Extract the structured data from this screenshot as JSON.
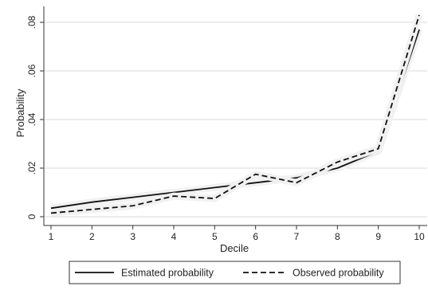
{
  "chart_data": {
    "type": "line",
    "title": "",
    "xlabel": "Decile",
    "ylabel": "Probability",
    "x": [
      1,
      2,
      3,
      4,
      5,
      6,
      7,
      8,
      9,
      10
    ],
    "x_tick_labels": [
      "1",
      "2",
      "3",
      "4",
      "5",
      "6",
      "7",
      "8",
      "9",
      "10"
    ],
    "y_ticks": [
      0,
      0.02,
      0.04,
      0.06,
      0.08
    ],
    "y_tick_labels": [
      "0",
      ".02",
      ".04",
      ".06",
      ".08"
    ],
    "xlim": [
      1,
      10
    ],
    "ylim": [
      0,
      0.085
    ],
    "grid": "horizontal",
    "legend_position": "bottom",
    "series": [
      {
        "name": "Estimated probability",
        "style": "solid",
        "color": "#111111",
        "values": [
          0.0035,
          0.006,
          0.008,
          0.01,
          0.012,
          0.014,
          0.016,
          0.02,
          0.027,
          0.077
        ]
      },
      {
        "name": "Observed probability",
        "style": "dashed",
        "color": "#111111",
        "values": [
          0.0015,
          0.003,
          0.0045,
          0.0085,
          0.0075,
          0.0175,
          0.014,
          0.0225,
          0.028,
          0.083
        ]
      }
    ]
  }
}
